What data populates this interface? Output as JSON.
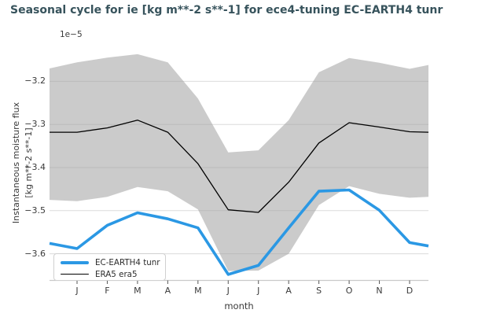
{
  "title": "Seasonal cycle for ie [kg m**-2 s**-1] for ece4-tuning EC-EARTH4 tunr",
  "axes": {
    "offset_label": "1e−5",
    "ylabel_line1": "Instantaneous moisture flux",
    "ylabel_line2": "[kg m**-2 s**-1]",
    "xlabel": "month",
    "ytick_labels": [
      "−3.2",
      "−3.3",
      "−3.4",
      "−3.5",
      "−3.6"
    ],
    "ytick_values": [
      -3.2,
      -3.3,
      -3.4,
      -3.5,
      -3.6
    ],
    "xtick_labels": [
      "J",
      "F",
      "M",
      "A",
      "M",
      "J",
      "J",
      "A",
      "S",
      "O",
      "N",
      "D"
    ]
  },
  "legend": {
    "items": [
      {
        "label": "EC-EARTH4 tunr",
        "color": "#2b98e4",
        "thickness": 4
      },
      {
        "label": "ERA5 era5",
        "color": "#000000",
        "thickness": 1.3
      }
    ]
  },
  "colors": {
    "background": "#ffffff",
    "title": "#37535c",
    "tick_label": "#3a3a3a",
    "axis_line": "#c9c9c9",
    "tick_mark": "#555555",
    "gridline": "#dcdcdc",
    "band_fill": "rgba(160,160,160,0.55)",
    "ec_line": "#2b98e4",
    "era5_line": "#000000",
    "legend_text": "#2d2d2d"
  },
  "chart_data": {
    "type": "line",
    "title": "Seasonal cycle for ie [kg m**-2 s**-1] for ece4-tuning EC-EARTH4 tunr",
    "xlabel": "month",
    "ylabel": "Instantaneous moisture flux [kg m**-2 s**-1]",
    "y_scale_factor": "1e-5",
    "ylim": [
      -3.665,
      -3.124
    ],
    "grid": true,
    "legend_position": "lower left",
    "x_categories": [
      "J",
      "F",
      "M",
      "A",
      "M",
      "J",
      "J",
      "A",
      "S",
      "O",
      "N",
      "D"
    ],
    "series": [
      {
        "name": "EC-EARTH4 tunr",
        "values": [
          -3.588,
          -3.534,
          -3.505,
          -3.519,
          -3.54,
          -3.648,
          -3.627,
          -3.54,
          -3.455,
          -3.452,
          -3.499,
          -3.574
        ],
        "edge_left": -3.576,
        "edge_right": -3.582
      },
      {
        "name": "ERA5 era5",
        "values": [
          -3.318,
          -3.308,
          -3.29,
          -3.318,
          -3.391,
          -3.498,
          -3.504,
          -3.434,
          -3.343,
          -3.296,
          -3.306,
          -3.317
        ],
        "edge_left": -3.318,
        "edge_right": -3.318
      }
    ],
    "band": {
      "name": "ERA5 spread band",
      "top": [
        -3.156,
        -3.145,
        -3.137,
        -3.156,
        -3.24,
        -3.365,
        -3.36,
        -3.29,
        -3.179,
        -3.146,
        -3.157,
        -3.171
      ],
      "bottom": [
        -3.478,
        -3.468,
        -3.445,
        -3.455,
        -3.497,
        -3.64,
        -3.639,
        -3.6,
        -3.487,
        -3.443,
        -3.461,
        -3.47
      ],
      "top_edge_left": -3.17,
      "top_edge_right": -3.162,
      "bottom_edge_left": -3.475,
      "bottom_edge_right": -3.468
    }
  }
}
